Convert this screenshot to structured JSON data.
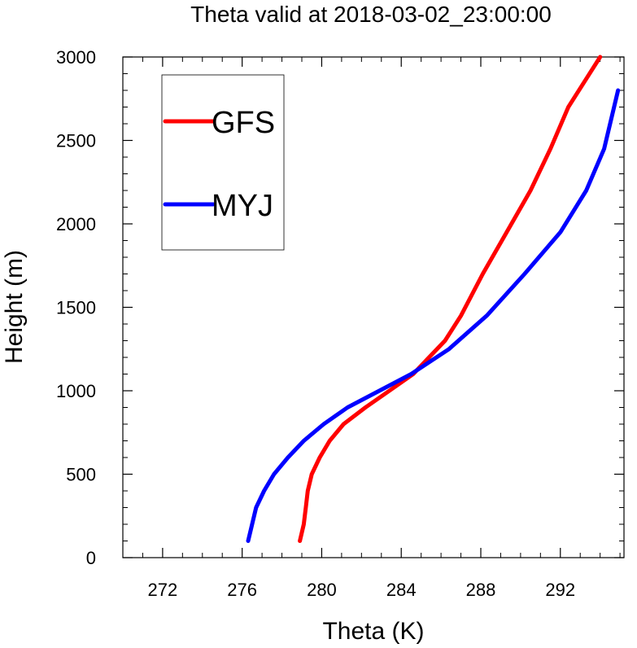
{
  "chart_data": {
    "type": "line",
    "title": "Theta valid at 2018-03-02_23:00:00",
    "xlabel": "Theta (K)",
    "ylabel": "Height (m)",
    "xlim": [
      270,
      295.2
    ],
    "ylim": [
      0,
      3000
    ],
    "x_ticks": [
      272,
      276,
      280,
      284,
      288,
      292
    ],
    "y_ticks": [
      0,
      500,
      1000,
      1500,
      2000,
      2500,
      3000
    ],
    "grid": false,
    "legend": "top-left",
    "series": [
      {
        "name": "GFS",
        "color": "#ff0000",
        "x": [
          278.9,
          279.1,
          279.2,
          279.3,
          279.5,
          279.9,
          280.4,
          281.1,
          282.2,
          283.4,
          284.6,
          285.4,
          286.2,
          287.0,
          288.1,
          289.3,
          290.5,
          291.5,
          292.4,
          293.2,
          294.0
        ],
        "y": [
          100,
          200,
          300,
          400,
          500,
          600,
          700,
          800,
          900,
          1000,
          1100,
          1200,
          1300,
          1450,
          1700,
          1950,
          2200,
          2450,
          2700,
          2850,
          3000
        ]
      },
      {
        "name": "MYJ",
        "color": "#0000ff",
        "x": [
          276.3,
          276.5,
          276.7,
          277.1,
          277.6,
          278.3,
          279.1,
          280.1,
          281.3,
          282.9,
          284.5,
          286.4,
          288.3,
          290.2,
          292.0,
          293.3,
          294.2,
          294.9
        ],
        "y": [
          100,
          200,
          300,
          400,
          500,
          600,
          700,
          800,
          900,
          1000,
          1100,
          1250,
          1450,
          1700,
          1950,
          2200,
          2450,
          2800
        ]
      }
    ]
  }
}
